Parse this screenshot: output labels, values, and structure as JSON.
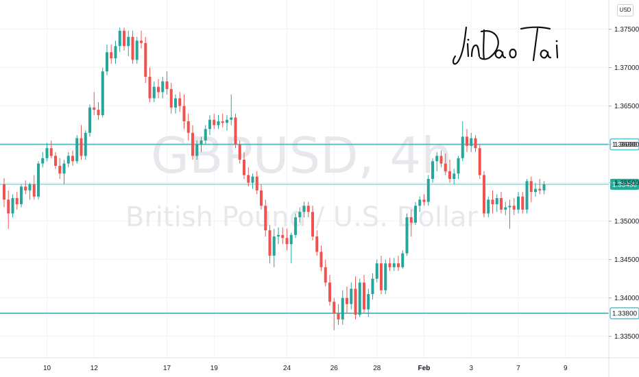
{
  "chart_data": {
    "type": "candlestick",
    "symbol": "GBPUSD, 4h",
    "description": "British Pound / U.S. Dollar",
    "currency": "USD",
    "signature": "JinDaoTai",
    "x_labels": [
      "10",
      "12",
      "17",
      "19",
      "24",
      "26",
      "28",
      "Feb",
      "3",
      "7",
      "9"
    ],
    "y_ticks": [
      "1.37500",
      "1.37000",
      "1.36500",
      "1.36000",
      "1.35500",
      "1.35000",
      "1.34500",
      "1.34000",
      "1.33500"
    ],
    "ylim": [
      1.3322,
      1.3788
    ],
    "horizontal_levels": [
      {
        "label": "1.36000",
        "value": 1.36,
        "color": "#5cbec9",
        "style": "bold"
      },
      {
        "label": "1.33800",
        "value": 1.338,
        "color": "#5cbec9",
        "style": "bold"
      },
      {
        "label": "1.35480",
        "value": 1.3548,
        "color": "#22ab94",
        "style": "current"
      }
    ],
    "current_price": "1.35480",
    "colors": {
      "up": "#26a69a",
      "down": "#ef5350",
      "level": "#5cbec9"
    },
    "candles": [
      [
        1.3548,
        1.3556,
        1.3518,
        1.3528
      ],
      [
        1.3528,
        1.354,
        1.349,
        1.351
      ],
      [
        1.351,
        1.3535,
        1.3505,
        1.353
      ],
      [
        1.353,
        1.3538,
        1.3515,
        1.3522
      ],
      [
        1.3522,
        1.3548,
        1.3518,
        1.3545
      ],
      [
        1.3545,
        1.3553,
        1.3535,
        1.354
      ],
      [
        1.354,
        1.355,
        1.3528,
        1.3548
      ],
      [
        1.3548,
        1.356,
        1.3528,
        1.3532
      ],
      [
        1.3532,
        1.3578,
        1.3528,
        1.3575
      ],
      [
        1.3575,
        1.359,
        1.357,
        1.3582
      ],
      [
        1.3582,
        1.3602,
        1.3578,
        1.3595
      ],
      [
        1.3595,
        1.3605,
        1.3582,
        1.3585
      ],
      [
        1.3585,
        1.359,
        1.3568,
        1.3572
      ],
      [
        1.3572,
        1.3582,
        1.3555,
        1.3562
      ],
      [
        1.3562,
        1.358,
        1.3548,
        1.3575
      ],
      [
        1.3575,
        1.359,
        1.357,
        1.3585
      ],
      [
        1.3585,
        1.3592,
        1.3572,
        1.3578
      ],
      [
        1.3578,
        1.3612,
        1.3575,
        1.3608
      ],
      [
        1.3608,
        1.3625,
        1.358,
        1.3585
      ],
      [
        1.3585,
        1.3618,
        1.358,
        1.3615
      ],
      [
        1.3615,
        1.3652,
        1.361,
        1.3648
      ],
      [
        1.3648,
        1.3668,
        1.3638,
        1.3645
      ],
      [
        1.3645,
        1.3655,
        1.3632,
        1.3638
      ],
      [
        1.3638,
        1.37,
        1.3635,
        1.3695
      ],
      [
        1.3695,
        1.373,
        1.369,
        1.372
      ],
      [
        1.372,
        1.373,
        1.3705,
        1.3712
      ],
      [
        1.3712,
        1.3735,
        1.3705,
        1.3728
      ],
      [
        1.3728,
        1.3752,
        1.372,
        1.3748
      ],
      [
        1.3748,
        1.3752,
        1.3722,
        1.3728
      ],
      [
        1.3728,
        1.3748,
        1.3715,
        1.374
      ],
      [
        1.374,
        1.3748,
        1.3705,
        1.371
      ],
      [
        1.371,
        1.374,
        1.3705,
        1.3735
      ],
      [
        1.3735,
        1.3748,
        1.3725,
        1.3732
      ],
      [
        1.3732,
        1.374,
        1.368,
        1.3688
      ],
      [
        1.3688,
        1.37,
        1.3655,
        1.366
      ],
      [
        1.366,
        1.3682,
        1.3655,
        1.3675
      ],
      [
        1.3675,
        1.3685,
        1.366,
        1.3668
      ],
      [
        1.3668,
        1.3688,
        1.366,
        1.3682
      ],
      [
        1.3682,
        1.3695,
        1.3665,
        1.3672
      ],
      [
        1.3672,
        1.368,
        1.364,
        1.3648
      ],
      [
        1.3648,
        1.3665,
        1.364,
        1.366
      ],
      [
        1.366,
        1.3668,
        1.3642,
        1.365
      ],
      [
        1.365,
        1.3665,
        1.362,
        1.363
      ],
      [
        1.363,
        1.364,
        1.3605,
        1.3615
      ],
      [
        1.3615,
        1.3625,
        1.358,
        1.3585
      ],
      [
        1.3585,
        1.3605,
        1.358,
        1.36
      ],
      [
        1.36,
        1.361,
        1.359,
        1.3605
      ],
      [
        1.3605,
        1.3625,
        1.36,
        1.362
      ],
      [
        1.362,
        1.3638,
        1.3612,
        1.3632
      ],
      [
        1.3632,
        1.364,
        1.362,
        1.3625
      ],
      [
        1.3625,
        1.3638,
        1.362,
        1.363
      ],
      [
        1.363,
        1.364,
        1.3622,
        1.3628
      ],
      [
        1.3628,
        1.3638,
        1.3618,
        1.3632
      ],
      [
        1.3632,
        1.3665,
        1.3625,
        1.3635
      ],
      [
        1.3635,
        1.364,
        1.3595,
        1.36
      ],
      [
        1.36,
        1.3605,
        1.3575,
        1.358
      ],
      [
        1.358,
        1.359,
        1.3555,
        1.356
      ],
      [
        1.356,
        1.357,
        1.3545,
        1.355
      ],
      [
        1.355,
        1.3562,
        1.3542,
        1.3558
      ],
      [
        1.3558,
        1.3565,
        1.3535,
        1.354
      ],
      [
        1.354,
        1.3548,
        1.3515,
        1.352
      ],
      [
        1.352,
        1.3528,
        1.348,
        1.3488
      ],
      [
        1.3488,
        1.3495,
        1.3445,
        1.3455
      ],
      [
        1.3455,
        1.349,
        1.344,
        1.348
      ],
      [
        1.348,
        1.3492,
        1.347,
        1.3482
      ],
      [
        1.3482,
        1.3492,
        1.347,
        1.3478
      ],
      [
        1.3478,
        1.349,
        1.3462,
        1.347
      ],
      [
        1.347,
        1.3485,
        1.3445,
        1.3482
      ],
      [
        1.3482,
        1.351,
        1.3478,
        1.3505
      ],
      [
        1.3505,
        1.3518,
        1.3498,
        1.3512
      ],
      [
        1.3512,
        1.3525,
        1.3505,
        1.352
      ],
      [
        1.352,
        1.3525,
        1.3505,
        1.3512
      ],
      [
        1.3512,
        1.352,
        1.3475,
        1.348
      ],
      [
        1.348,
        1.3488,
        1.3455,
        1.346
      ],
      [
        1.346,
        1.3468,
        1.3435,
        1.344
      ],
      [
        1.344,
        1.345,
        1.3415,
        1.342
      ],
      [
        1.342,
        1.343,
        1.339,
        1.3395
      ],
      [
        1.3395,
        1.34,
        1.3358,
        1.338
      ],
      [
        1.338,
        1.3392,
        1.3365,
        1.3372
      ],
      [
        1.3372,
        1.341,
        1.3365,
        1.34
      ],
      [
        1.34,
        1.3415,
        1.338,
        1.3392
      ],
      [
        1.3392,
        1.342,
        1.3385,
        1.3412
      ],
      [
        1.3412,
        1.3428,
        1.3372,
        1.3378
      ],
      [
        1.3378,
        1.3425,
        1.3375,
        1.342
      ],
      [
        1.342,
        1.343,
        1.338,
        1.3385
      ],
      [
        1.3385,
        1.3412,
        1.3375,
        1.3405
      ],
      [
        1.3405,
        1.3432,
        1.3398,
        1.3425
      ],
      [
        1.3425,
        1.345,
        1.342,
        1.3445
      ],
      [
        1.3445,
        1.3455,
        1.3405,
        1.341
      ],
      [
        1.341,
        1.345,
        1.3405,
        1.3445
      ],
      [
        1.3445,
        1.3452,
        1.3435,
        1.344
      ],
      [
        1.344,
        1.3452,
        1.3435,
        1.3445
      ],
      [
        1.3445,
        1.3455,
        1.3435,
        1.344
      ],
      [
        1.344,
        1.3462,
        1.3438,
        1.3458
      ],
      [
        1.3458,
        1.351,
        1.3455,
        1.3505
      ],
      [
        1.3505,
        1.3515,
        1.348,
        1.3498
      ],
      [
        1.3498,
        1.3525,
        1.3495,
        1.352
      ],
      [
        1.352,
        1.3532,
        1.3512,
        1.3528
      ],
      [
        1.3528,
        1.3535,
        1.352,
        1.3525
      ],
      [
        1.3525,
        1.356,
        1.352,
        1.3555
      ],
      [
        1.3555,
        1.3582,
        1.355,
        1.3578
      ],
      [
        1.3578,
        1.359,
        1.3565,
        1.3585
      ],
      [
        1.3585,
        1.3592,
        1.357,
        1.3575
      ],
      [
        1.3575,
        1.3588,
        1.356,
        1.3565
      ],
      [
        1.3565,
        1.358,
        1.355,
        1.3555
      ],
      [
        1.3555,
        1.3568,
        1.3548,
        1.3562
      ],
      [
        1.3562,
        1.3585,
        1.3555,
        1.3582
      ],
      [
        1.3582,
        1.363,
        1.3578,
        1.361
      ],
      [
        1.361,
        1.362,
        1.359,
        1.3598
      ],
      [
        1.3598,
        1.3615,
        1.359,
        1.3608
      ],
      [
        1.3608,
        1.3612,
        1.359,
        1.3595
      ],
      [
        1.3595,
        1.36,
        1.3555,
        1.356
      ],
      [
        1.356,
        1.3565,
        1.3505,
        1.351
      ],
      [
        1.351,
        1.3532,
        1.3505,
        1.3528
      ],
      [
        1.3528,
        1.354,
        1.351,
        1.3522
      ],
      [
        1.3522,
        1.3535,
        1.3512,
        1.353
      ],
      [
        1.353,
        1.3538,
        1.351,
        1.3515
      ],
      [
        1.3515,
        1.3525,
        1.3508,
        1.3518
      ],
      [
        1.3518,
        1.3528,
        1.349,
        1.352
      ],
      [
        1.352,
        1.353,
        1.3508,
        1.3515
      ],
      [
        1.3515,
        1.3538,
        1.351,
        1.3532
      ],
      [
        1.3532,
        1.3538,
        1.351,
        1.3515
      ],
      [
        1.3515,
        1.3555,
        1.351,
        1.3552
      ],
      [
        1.3552,
        1.3558,
        1.3525,
        1.3538
      ],
      [
        1.3538,
        1.355,
        1.3532,
        1.3542
      ],
      [
        1.3542,
        1.3555,
        1.3535,
        1.354
      ],
      [
        1.354,
        1.3552,
        1.3535,
        1.3548
      ]
    ]
  }
}
